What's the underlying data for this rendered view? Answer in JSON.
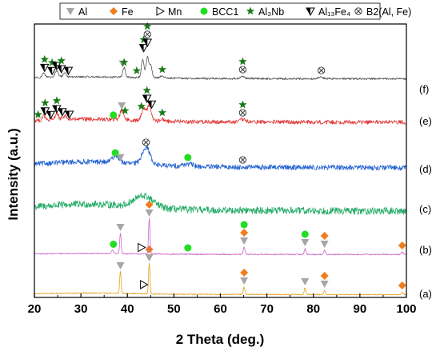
{
  "chart_data": {
    "type": "line",
    "title": "",
    "xlabel": "2 Theta (deg.)",
    "ylabel": "Intensity (a.u.)",
    "xlim": [
      20,
      100
    ],
    "xticks": [
      20,
      30,
      40,
      50,
      60,
      70,
      80,
      90,
      100
    ],
    "y_ticks_shown": false,
    "grid": false,
    "legend_position": "top",
    "legend": [
      {
        "label": "Al",
        "symbol": "triangle-down",
        "color": "#a6a6a6"
      },
      {
        "label": "Fe",
        "symbol": "diamond",
        "color": "#f07c1c"
      },
      {
        "label": "Mn",
        "symbol": "triangle-right-open",
        "color": "#000000"
      },
      {
        "label": "BCC1",
        "symbol": "circle",
        "color": "#22dd22"
      },
      {
        "label": "Al₃Nb",
        "symbol": "star",
        "color": "#1a7a1a"
      },
      {
        "label": "Al₁₃Fe₄",
        "symbol": "triangle-down-half",
        "color": "#000000"
      },
      {
        "label": "B2(Al, Fe)",
        "symbol": "circle-x",
        "color": "#333333"
      }
    ],
    "series": [
      {
        "name": "(a)",
        "color": "#e8a020",
        "baseline": 0,
        "peaks": [
          {
            "x": 38.5,
            "height": 28,
            "width": 0.22
          },
          {
            "x": 44.7,
            "height": 38,
            "width": 0.22
          },
          {
            "x": 65.1,
            "height": 9,
            "width": 0.25
          },
          {
            "x": 78.2,
            "height": 8,
            "width": 0.25
          },
          {
            "x": 82.4,
            "height": 5,
            "width": 0.25
          },
          {
            "x": 99.1,
            "height": 3,
            "width": 0.3
          }
        ],
        "markers": [
          {
            "x": 38.5,
            "symbols": [
              "Al"
            ]
          },
          {
            "x": 43.5,
            "symbols": [
              "Mn"
            ]
          },
          {
            "x": 44.7,
            "symbols": [
              "Al",
              "Fe"
            ]
          },
          {
            "x": 65.1,
            "symbols": [
              "Al",
              "Fe"
            ]
          },
          {
            "x": 78.2,
            "symbols": [
              "Al"
            ]
          },
          {
            "x": 82.4,
            "symbols": [
              "Al",
              "Fe"
            ]
          },
          {
            "x": 99.1,
            "symbols": [
              "Fe"
            ]
          }
        ]
      },
      {
        "name": "(b)",
        "color": "#cc66cc",
        "baseline": 0,
        "peaks": [
          {
            "x": 36.8,
            "height": 4,
            "width": 0.35
          },
          {
            "x": 38.5,
            "height": 26,
            "width": 0.22
          },
          {
            "x": 44.7,
            "height": 44,
            "width": 0.22
          },
          {
            "x": 65.1,
            "height": 9,
            "width": 0.25
          },
          {
            "x": 78.2,
            "height": 7,
            "width": 0.25
          },
          {
            "x": 82.4,
            "height": 5,
            "width": 0.25
          },
          {
            "x": 99.1,
            "height": 3,
            "width": 0.3
          }
        ],
        "markers": [
          {
            "x": 37.0,
            "symbols": [
              "BCC1"
            ]
          },
          {
            "x": 38.5,
            "symbols": [
              "Al"
            ]
          },
          {
            "x": 43.0,
            "symbols": [
              "Mn"
            ]
          },
          {
            "x": 44.7,
            "symbols": [
              "Al",
              "Fe"
            ]
          },
          {
            "x": 53.0,
            "symbols": [
              "BCC1"
            ]
          },
          {
            "x": 65.1,
            "symbols": [
              "Al",
              "Fe",
              "BCC1"
            ]
          },
          {
            "x": 78.2,
            "symbols": [
              "Al",
              "BCC1"
            ]
          },
          {
            "x": 82.4,
            "symbols": [
              "Al",
              "Fe"
            ]
          },
          {
            "x": 99.1,
            "symbols": [
              "Fe"
            ]
          }
        ]
      },
      {
        "name": "(c)",
        "color": "#22aa66",
        "baseline": 0,
        "peaks": [
          {
            "x": 43.5,
            "height": 14,
            "width": 2.8
          }
        ],
        "markers": []
      },
      {
        "name": "(d)",
        "color": "#1f5fd0",
        "baseline": 0,
        "peaks": [
          {
            "x": 37.5,
            "height": 9,
            "width": 1.0
          },
          {
            "x": 44.0,
            "height": 22,
            "width": 1.2
          },
          {
            "x": 53.0,
            "height": 3,
            "width": 1.5
          }
        ],
        "markers": [
          {
            "x": 37.4,
            "symbols": [
              "BCC1"
            ]
          },
          {
            "x": 38.5,
            "symbols": [
              "Al"
            ]
          },
          {
            "x": 44.0,
            "symbols": [
              "B2(Al, Fe)"
            ]
          },
          {
            "x": 53.0,
            "symbols": [
              "BCC1"
            ]
          },
          {
            "x": 64.8,
            "symbols": [
              "B2(Al, Fe)"
            ]
          }
        ]
      },
      {
        "name": "(e)",
        "color": "#e03a3a",
        "baseline": 0,
        "peaks": [
          {
            "x": 22.0,
            "height": 6,
            "width": 0.4
          },
          {
            "x": 24.8,
            "height": 8,
            "width": 0.5
          },
          {
            "x": 26.5,
            "height": 5,
            "width": 0.5
          },
          {
            "x": 38.8,
            "height": 12,
            "width": 0.6
          },
          {
            "x": 43.5,
            "height": 16,
            "width": 0.6
          },
          {
            "x": 44.7,
            "height": 20,
            "width": 0.6
          },
          {
            "x": 47.5,
            "height": 3,
            "width": 0.5
          },
          {
            "x": 64.8,
            "height": 3,
            "width": 0.8
          }
        ],
        "markers": [
          {
            "x": 20.8,
            "symbols": [
              "Al₃Nb"
            ]
          },
          {
            "x": 22.3,
            "symbols": [
              "Al₁₃Fe₄",
              "Al₃Nb"
            ]
          },
          {
            "x": 23.5,
            "symbols": [
              "Al₁₃Fe₄"
            ]
          },
          {
            "x": 24.8,
            "symbols": [
              "Al₁₃Fe₄",
              "Al₃Nb"
            ]
          },
          {
            "x": 26.0,
            "symbols": [
              "Al₁₃Fe₄"
            ]
          },
          {
            "x": 27.5,
            "symbols": [
              "Al₁₃Fe₄"
            ]
          },
          {
            "x": 37.0,
            "symbols": [
              "BCC1"
            ]
          },
          {
            "x": 38.8,
            "symbols": [
              "Al"
            ]
          },
          {
            "x": 39.5,
            "symbols": [
              "Al₃Nb"
            ]
          },
          {
            "x": 43.0,
            "symbols": [
              "Al₃Nb"
            ]
          },
          {
            "x": 44.2,
            "symbols": [
              "Al₁₃Fe₄",
              "Al₃Nb"
            ]
          },
          {
            "x": 45.2,
            "symbols": [
              "Al₁₃Fe₄"
            ]
          },
          {
            "x": 47.5,
            "symbols": [
              "Al₃Nb"
            ]
          },
          {
            "x": 64.8,
            "symbols": [
              "B2(Al, Fe)",
              "Al₃Nb"
            ]
          }
        ]
      },
      {
        "name": "(f)",
        "color": "#555555",
        "baseline": 0,
        "peaks": [
          {
            "x": 22.0,
            "height": 6,
            "width": 0.4
          },
          {
            "x": 24.8,
            "height": 8,
            "width": 0.5
          },
          {
            "x": 26.5,
            "height": 5,
            "width": 0.5
          },
          {
            "x": 39.3,
            "height": 12,
            "width": 0.4
          },
          {
            "x": 43.3,
            "height": 22,
            "width": 0.4
          },
          {
            "x": 44.3,
            "height": 25,
            "width": 0.4
          },
          {
            "x": 45.0,
            "height": 16,
            "width": 0.4
          },
          {
            "x": 47.5,
            "height": 3,
            "width": 0.5
          },
          {
            "x": 64.8,
            "height": 3,
            "width": 0.6
          },
          {
            "x": 81.5,
            "height": 2,
            "width": 0.8
          }
        ],
        "markers": [
          {
            "x": 22.2,
            "symbols": [
              "Al₁₃Fe₄",
              "Al₃Nb"
            ]
          },
          {
            "x": 23.8,
            "symbols": [
              "Al₁₃Fe₄",
              "Al₃Nb"
            ]
          },
          {
            "x": 24.8,
            "symbols": [
              "Al₁₃Fe₄"
            ]
          },
          {
            "x": 25.8,
            "symbols": [
              "Al₁₃Fe₄",
              "Al₃Nb"
            ]
          },
          {
            "x": 27.3,
            "symbols": [
              "Al₁₃Fe₄"
            ]
          },
          {
            "x": 39.0,
            "symbols": [
              "Al"
            ]
          },
          {
            "x": 39.3,
            "symbols": [
              "Al₃Nb"
            ]
          },
          {
            "x": 42.0,
            "symbols": [
              "Al₃Nb"
            ]
          },
          {
            "x": 43.5,
            "symbols": [
              "Al₁₃Fe₄",
              "Al₃Nb"
            ]
          },
          {
            "x": 44.3,
            "symbols": [
              "Al₁₃Fe₄",
              "B2(Al, Fe)",
              "Al₃Nb"
            ]
          },
          {
            "x": 47.5,
            "symbols": [
              "Al₃Nb"
            ]
          },
          {
            "x": 64.8,
            "symbols": [
              "B2(Al, Fe)",
              "Al₃Nb"
            ]
          },
          {
            "x": 81.7,
            "symbols": [
              "B2(Al, Fe)"
            ]
          }
        ]
      }
    ]
  }
}
